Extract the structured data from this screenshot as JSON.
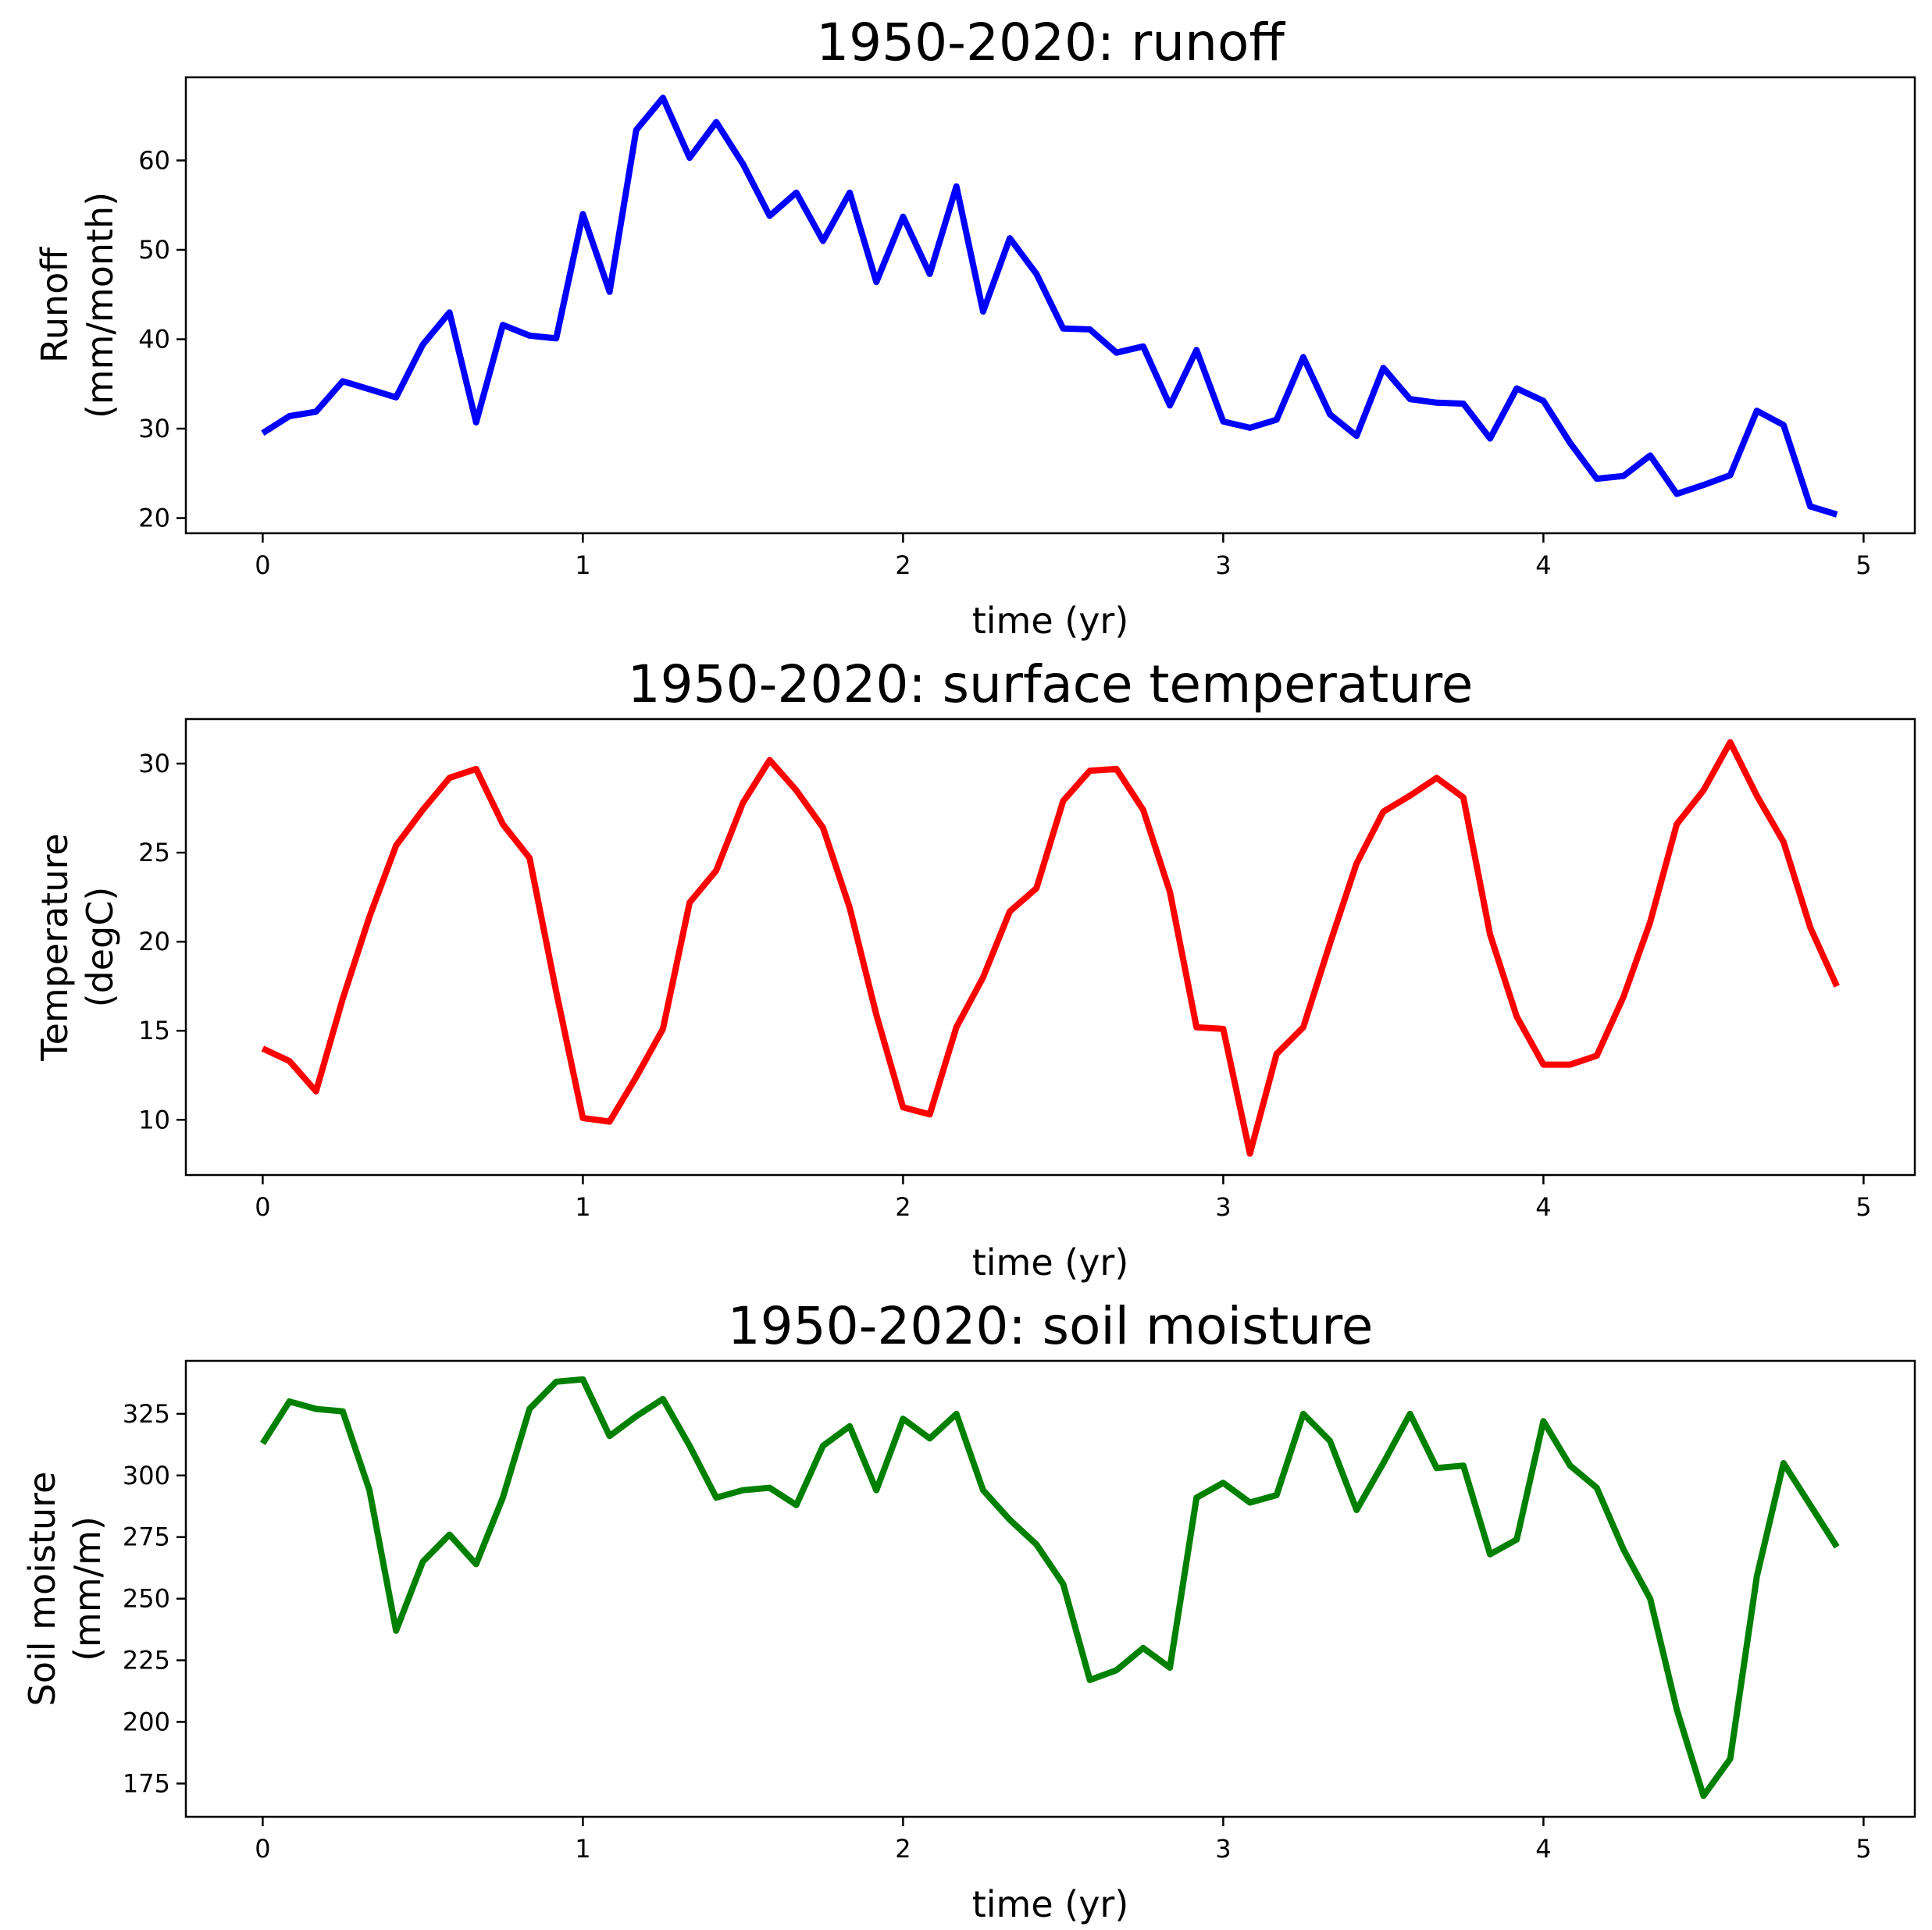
{
  "chart_data": [
    {
      "type": "line",
      "title": "1950-2020: runoff",
      "xlabel": "time (yr)",
      "ylabel": [
        "Runoff",
        "(mm/month)"
      ],
      "color": "#0000ff",
      "xlim": [
        -0.24,
        5.16
      ],
      "ylim": [
        18.3,
        69.3
      ],
      "xticks": [
        0,
        1,
        2,
        3,
        4,
        5
      ],
      "yticks": [
        20,
        30,
        40,
        50,
        60
      ],
      "x": [
        0.0,
        0.0833,
        0.1667,
        0.25,
        0.3333,
        0.4167,
        0.5,
        0.5833,
        0.6667,
        0.75,
        0.8333,
        0.9167,
        1.0,
        1.0833,
        1.1667,
        1.25,
        1.3333,
        1.4167,
        1.5,
        1.5833,
        1.6667,
        1.75,
        1.8333,
        1.9167,
        2.0,
        2.0833,
        2.1667,
        2.25,
        2.3333,
        2.4167,
        2.5,
        2.5833,
        2.6667,
        2.75,
        2.8333,
        2.9167,
        3.0,
        3.0833,
        3.1667,
        3.25,
        3.3333,
        3.4167,
        3.5,
        3.5833,
        3.6667,
        3.75,
        3.8333,
        3.9167,
        4.0,
        4.0833,
        4.1667,
        4.25,
        4.3333,
        4.4167,
        4.5,
        4.5833,
        4.6667,
        4.75,
        4.8333,
        4.9167
      ],
      "values": [
        29.5,
        31.4,
        31.9,
        35.3,
        34.4,
        33.5,
        39.4,
        43.0,
        30.7,
        41.6,
        40.4,
        40.1,
        54.0,
        45.3,
        63.4,
        67.0,
        60.3,
        64.3,
        59.6,
        53.8,
        56.4,
        51.0,
        56.4,
        46.4,
        53.7,
        47.3,
        57.1,
        43.1,
        51.3,
        47.3,
        41.2,
        41.1,
        38.5,
        39.2,
        32.6,
        38.8,
        30.8,
        30.1,
        31.0,
        38.0,
        31.6,
        29.2,
        36.8,
        33.3,
        32.9,
        32.8,
        28.9,
        34.5,
        33.1,
        28.4,
        24.4,
        24.7,
        27.0,
        22.7,
        23.7,
        24.8,
        32.0,
        30.4,
        21.3,
        20.4
      ]
    },
    {
      "type": "line",
      "title": "1950-2020: surface temperature",
      "xlabel": "time (yr)",
      "ylabel": [
        "Temperature",
        "(degC)"
      ],
      "color": "#ff0000",
      "xlim": [
        -0.24,
        5.16
      ],
      "ylim": [
        6.9,
        32.5
      ],
      "xticks": [
        0,
        1,
        2,
        3,
        4,
        5
      ],
      "yticks": [
        10,
        15,
        20,
        25,
        30
      ],
      "x": [
        0.0,
        0.0833,
        0.1667,
        0.25,
        0.3333,
        0.4167,
        0.5,
        0.5833,
        0.6667,
        0.75,
        0.8333,
        0.9167,
        1.0,
        1.0833,
        1.1667,
        1.25,
        1.3333,
        1.4167,
        1.5,
        1.5833,
        1.6667,
        1.75,
        1.8333,
        1.9167,
        2.0,
        2.0833,
        2.1667,
        2.25,
        2.3333,
        2.4167,
        2.5,
        2.5833,
        2.6667,
        2.75,
        2.8333,
        2.9167,
        3.0,
        3.0833,
        3.1667,
        3.25,
        3.3333,
        3.4167,
        3.5,
        3.5833,
        3.6667,
        3.75,
        3.8333,
        3.9167,
        4.0,
        4.0833,
        4.1667,
        4.25,
        4.3333,
        4.4167,
        4.5,
        4.5833,
        4.6667,
        4.75,
        4.8333,
        4.9167
      ],
      "values": [
        14.0,
        13.3,
        11.6,
        16.8,
        21.4,
        25.4,
        27.4,
        29.2,
        29.7,
        26.6,
        24.7,
        17.2,
        10.1,
        9.9,
        12.4,
        15.1,
        22.2,
        24.0,
        27.8,
        30.2,
        28.5,
        26.4,
        21.9,
        15.9,
        10.7,
        10.3,
        15.2,
        18.0,
        21.7,
        23.0,
        27.9,
        29.6,
        29.7,
        27.4,
        22.8,
        15.2,
        15.1,
        8.1,
        13.7,
        15.2,
        19.9,
        24.4,
        27.3,
        28.2,
        29.2,
        28.1,
        20.4,
        15.8,
        13.1,
        13.1,
        13.6,
        16.9,
        21.1,
        26.6,
        28.5,
        31.2,
        28.2,
        25.6,
        20.8,
        17.5
      ]
    },
    {
      "type": "line",
      "title": "1950-2020: soil moisture",
      "xlabel": "time (yr)",
      "ylabel": [
        "Soil moisture",
        "(mm/m)"
      ],
      "color": "#008000",
      "xlim": [
        -0.24,
        5.16
      ],
      "ylim": [
        161.5,
        346.5
      ],
      "xticks": [
        0,
        1,
        2,
        3,
        4,
        5
      ],
      "yticks": [
        175,
        200,
        225,
        250,
        275,
        300,
        325
      ],
      "x": [
        0.0,
        0.0833,
        0.1667,
        0.25,
        0.3333,
        0.4167,
        0.5,
        0.5833,
        0.6667,
        0.75,
        0.8333,
        0.9167,
        1.0,
        1.0833,
        1.1667,
        1.25,
        1.3333,
        1.4167,
        1.5,
        1.5833,
        1.6667,
        1.75,
        1.8333,
        1.9167,
        2.0,
        2.0833,
        2.1667,
        2.25,
        2.3333,
        2.4167,
        2.5,
        2.5833,
        2.6667,
        2.75,
        2.8333,
        2.9167,
        3.0,
        3.0833,
        3.1667,
        3.25,
        3.3333,
        3.4167,
        3.5,
        3.5833,
        3.6667,
        3.75,
        3.8333,
        3.9167,
        4.0,
        4.0833,
        4.1667,
        4.25,
        4.3333,
        4.4167,
        4.5,
        4.5833,
        4.6667,
        4.75,
        4.8333,
        4.9167
      ],
      "values": [
        313,
        330,
        327,
        326,
        294,
        237,
        265,
        276,
        264,
        291,
        327,
        338,
        339,
        316,
        324,
        331,
        312,
        291,
        294,
        295,
        288,
        312,
        320,
        294,
        323,
        315,
        325,
        294,
        282,
        272,
        256,
        217,
        221,
        230,
        222,
        291,
        297,
        289,
        292,
        325,
        314,
        286,
        305,
        325,
        303,
        304,
        268,
        274,
        322,
        304,
        295,
        270,
        250,
        205,
        170,
        185,
        259,
        305,
        288,
        271
      ]
    }
  ]
}
